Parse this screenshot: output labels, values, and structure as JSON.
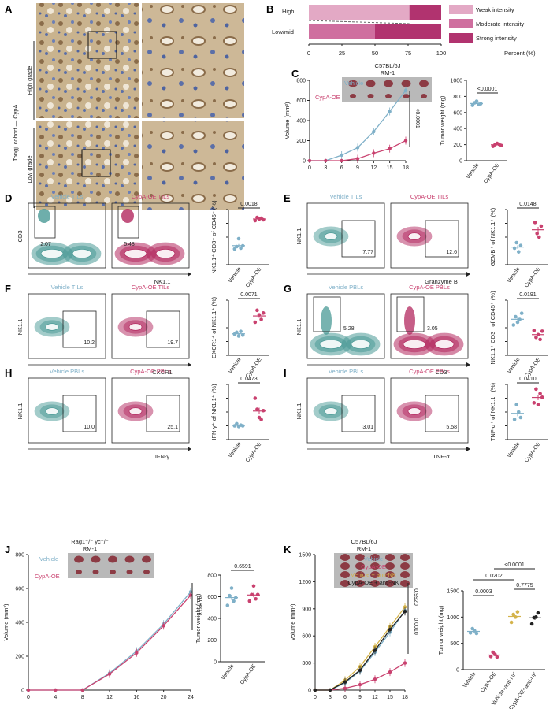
{
  "panels": {
    "A": {
      "letter": "A",
      "cohort_label": "Tongji cohort — CypA",
      "high": "High grade",
      "low": "Low grade"
    },
    "B": {
      "letter": "B",
      "rows": [
        "High",
        "Low/mid"
      ],
      "xticks": [
        "0",
        "25",
        "50",
        "75",
        "100"
      ],
      "xlabel": "Percent (%)",
      "legend": [
        "Weak intensity",
        "Moderate intensity",
        "Strong intensity"
      ]
    },
    "C": {
      "letter": "C",
      "strain": "C57BL/6J",
      "model": "RM-1",
      "vehicle": "Vehicle",
      "oe": "CypA-OE",
      "ylabel": "Volume (mm³)",
      "pval_curve": "<0.0001",
      "ylabel2": "Tumor weight (mg)",
      "pval_bar": "<0.0001",
      "xticks": [
        "0",
        "3",
        "6",
        "9",
        "12",
        "15",
        "18"
      ],
      "yticks": [
        "0",
        "200",
        "400",
        "600",
        "800"
      ],
      "y2ticks": [
        "0",
        "200",
        "400",
        "600",
        "800",
        "1000"
      ]
    },
    "D": {
      "letter": "D",
      "t1": "Vehicle TILs",
      "t2": "CypA-OE TILs",
      "g1": "2.07",
      "g2": "5.48",
      "xa": "NK1.1",
      "ya": "CD3",
      "ylabel": "NK1.1⁺ CD3⁻ of CD45⁺ (%)",
      "p": "0.0018"
    },
    "E": {
      "letter": "E",
      "t1": "Vehicle TILs",
      "t2": "CypA-OE TILs",
      "g1": "7.77",
      "g2": "12.6",
      "xa": "Granzyme B",
      "ya": "NK1.1",
      "ylabel": "GZMB⁺ of NK1.1⁺ (%)",
      "p": "0.0148"
    },
    "F": {
      "letter": "F",
      "t1": "Vehicle TILs",
      "t2": "CypA-OE TILs",
      "g1": "10.2",
      "g2": "19.7",
      "xa": "CXCR1",
      "ya": "NK1.1",
      "ylabel": "CXCR1⁺ of NK1.1⁺ (%)",
      "p": "0.0071"
    },
    "G": {
      "letter": "G",
      "t1": "Vehicle PBLs",
      "t2": "CypA-OE PBLs",
      "g1": "5.28",
      "g2": "3.05",
      "xa": "CD3",
      "ya": "NK1.1",
      "ylabel": "NK1.1⁺ CD3⁻ of CD45⁺ (%)",
      "p": "0.0191"
    },
    "H": {
      "letter": "H",
      "t1": "Vehicle PBLs",
      "t2": "CypA-OE PBLs",
      "g1": "10.0",
      "g2": "25.1",
      "xa": "IFN-γ",
      "ya": "NK1.1",
      "ylabel": "IFN-γ⁺ of NK1.1⁺ (%)",
      "p": "0.0473"
    },
    "I": {
      "letter": "I",
      "t1": "Vehicle PBLs",
      "t2": "CypA-OE PBLs",
      "g1": "3.01",
      "g2": "5.58",
      "xa": "TNF-α",
      "ya": "NK1.1",
      "ylabel": "TNF-α⁺ of NK1.1⁺ (%)",
      "p": "0.0410"
    },
    "J": {
      "letter": "J",
      "strain": "Rag1⁻/⁻ γc⁻/⁻",
      "model": "RM-1",
      "vehicle": "Vehicle",
      "oe": "CypA-OE",
      "ylabel": "Volume (mm³)",
      "pval_curve": "0.9812",
      "ylabel2": "Tumor weight (mg)",
      "pval_bar": "0.6591",
      "xticks": [
        "0",
        "4",
        "8",
        "12",
        "16",
        "20",
        "24"
      ],
      "yticks": [
        "0",
        "200",
        "400",
        "600",
        "800"
      ],
      "y2ticks": [
        "0",
        "200",
        "400",
        "600",
        "800"
      ]
    },
    "K": {
      "letter": "K",
      "strain": "C57BL/6J",
      "model": "RM-1",
      "legend": [
        "Vehicle",
        "CypA-OE",
        "Vehicle + anti-NK",
        "CypA-OE + anti-NK"
      ],
      "ylabel": "Volume (mm³)",
      "pval_curve_1": "0.0010",
      "pval_curve_2": "0.9920",
      "ylabel2": "Tumor weight (mg)",
      "pvals": [
        "0.0003",
        "0.0202",
        "0.7775",
        "<0.0001"
      ],
      "xticks": [
        "0",
        "3",
        "6",
        "9",
        "12",
        "15",
        "18"
      ],
      "yticks": [
        "0",
        "300",
        "600",
        "900",
        "1200",
        "1500"
      ],
      "y2ticks": [
        "0",
        "500",
        "1000",
        "1500"
      ],
      "bar_cats": [
        "Vehicle",
        "CypA-OE",
        "Vehicle+anti-NK",
        "CypA-OE+anti-NK"
      ]
    }
  },
  "common": {
    "vehicle": "Vehicle",
    "oe": "CypA-OE"
  },
  "chart_data": [
    {
      "type": "bar",
      "id": "B",
      "categories": [
        "High",
        "Low/mid"
      ],
      "series": [
        {
          "name": "Weak intensity",
          "values": [
            76,
            0
          ]
        },
        {
          "name": "Moderate intensity",
          "values": [
            0,
            50
          ]
        },
        {
          "name": "Strong intensity",
          "values": [
            24,
            50
          ]
        }
      ],
      "xlabel": "Percent (%)",
      "xlim": [
        0,
        100
      ],
      "colors": [
        "#e3a9c5",
        "#cf6f9f",
        "#b1336f"
      ]
    },
    {
      "type": "line",
      "id": "C-growth",
      "x": [
        0,
        3,
        6,
        9,
        12,
        15,
        18
      ],
      "series": [
        {
          "name": "Vehicle",
          "values": [
            0,
            0,
            55,
            130,
            290,
            490,
            700
          ]
        },
        {
          "name": "CypA-OE",
          "values": [
            0,
            0,
            0,
            20,
            75,
            120,
            200
          ]
        }
      ],
      "xlabel": "",
      "ylabel": "Volume (mm³)",
      "ylim": [
        0,
        800
      ]
    },
    {
      "type": "scatter",
      "id": "C-weight",
      "categories": [
        "Vehicle",
        "CypA-OE"
      ],
      "values": [
        [
          690,
          720,
          740,
          700,
          710
        ],
        [
          180,
          200,
          215,
          205,
          190
        ]
      ],
      "ylabel": "Tumor weight (mg)",
      "ylim": [
        0,
        1000
      ]
    },
    {
      "type": "scatter",
      "id": "D",
      "categories": [
        "Vehicle",
        "CypA-OE"
      ],
      "values": [
        [
          2.0,
          2.3,
          3.3,
          2.1,
          2.4
        ],
        [
          5.6,
          6.0,
          5.8,
          5.9,
          5.7
        ]
      ],
      "ylim": [
        0,
        7
      ]
    },
    {
      "type": "scatter",
      "id": "E",
      "categories": [
        "Vehicle",
        "CypA-OE"
      ],
      "values": [
        [
          4.5,
          6.0,
          3.5,
          5.2
        ],
        [
          11.5,
          8.5,
          7.5,
          10.5
        ]
      ],
      "ylim": [
        0,
        15
      ]
    },
    {
      "type": "scatter",
      "id": "F",
      "categories": [
        "Vehicle",
        "CypA-OE"
      ],
      "values": [
        [
          11.5,
          12.5,
          10.5,
          13.0,
          11.0
        ],
        [
          18.0,
          24.5,
          22.0,
          19.5,
          23.0
        ]
      ],
      "ylim": [
        0,
        30
      ]
    },
    {
      "type": "scatter",
      "id": "G",
      "categories": [
        "Vehicle",
        "CypA-OE"
      ],
      "values": [
        [
          4.4,
          5.6,
          4.8,
          5.2,
          6.1
        ],
        [
          3.6,
          2.6,
          3.0,
          2.3,
          3.5
        ]
      ],
      "ylim": [
        0,
        8
      ]
    },
    {
      "type": "scatter",
      "id": "H",
      "categories": [
        "Vehicle",
        "CypA-OE"
      ],
      "values": [
        [
          10.0,
          11.5,
          9.5,
          10.5,
          10.0
        ],
        [
          30.0,
          22.0,
          16.0,
          14.5,
          21.0
        ]
      ],
      "ylim": [
        0,
        40
      ]
    },
    {
      "type": "scatter",
      "id": "I",
      "categories": [
        "Vehicle",
        "CypA-OE"
      ],
      "values": [
        [
          2.2,
          3.8,
          3.0,
          2.4
        ],
        [
          4.0,
          5.5,
          3.8,
          5.0,
          4.6
        ]
      ],
      "ylim": [
        0,
        6
      ]
    },
    {
      "type": "line",
      "id": "J-growth",
      "x": [
        0,
        4,
        8,
        12,
        16,
        20,
        24
      ],
      "series": [
        {
          "name": "Vehicle",
          "values": [
            0,
            0,
            0,
            100,
            230,
            390,
            580
          ]
        },
        {
          "name": "CypA-OE",
          "values": [
            0,
            0,
            0,
            95,
            220,
            380,
            560
          ]
        }
      ],
      "ylabel": "Volume (mm³)",
      "ylim": [
        0,
        800
      ]
    },
    {
      "type": "scatter",
      "id": "J-weight",
      "categories": [
        "Vehicle",
        "CypA-OE"
      ],
      "values": [
        [
          520,
          610,
          680,
          560,
          590
        ],
        [
          560,
          620,
          700,
          580,
          620
        ]
      ],
      "ylim": [
        0,
        800
      ]
    },
    {
      "type": "line",
      "id": "K-growth",
      "x": [
        0,
        3,
        6,
        9,
        12,
        15,
        18
      ],
      "series": [
        {
          "name": "Vehicle",
          "values": [
            0,
            0,
            80,
            210,
            420,
            640,
            880
          ]
        },
        {
          "name": "CypA-OE",
          "values": [
            0,
            0,
            20,
            60,
            120,
            200,
            300
          ]
        },
        {
          "name": "Vehicle + anti-NK",
          "values": [
            0,
            0,
            110,
            260,
            480,
            700,
            920
          ]
        },
        {
          "name": "CypA-OE + anti-NK",
          "values": [
            0,
            0,
            90,
            220,
            440,
            670,
            870
          ]
        }
      ],
      "ylabel": "Volume (mm³)",
      "ylim": [
        0,
        1500
      ]
    },
    {
      "type": "scatter",
      "id": "K-weight",
      "categories": [
        "Vehicle",
        "CypA-OE",
        "Vehicle+anti-NK",
        "CypA-OE+anti-NK"
      ],
      "values": [
        [
          700,
          780,
          740,
          690
        ],
        [
          250,
          330,
          290,
          240
        ],
        [
          900,
          1050,
          1000,
          1100
        ],
        [
          870,
          990,
          1000,
          1080
        ]
      ],
      "ylim": [
        0,
        1500
      ]
    }
  ]
}
